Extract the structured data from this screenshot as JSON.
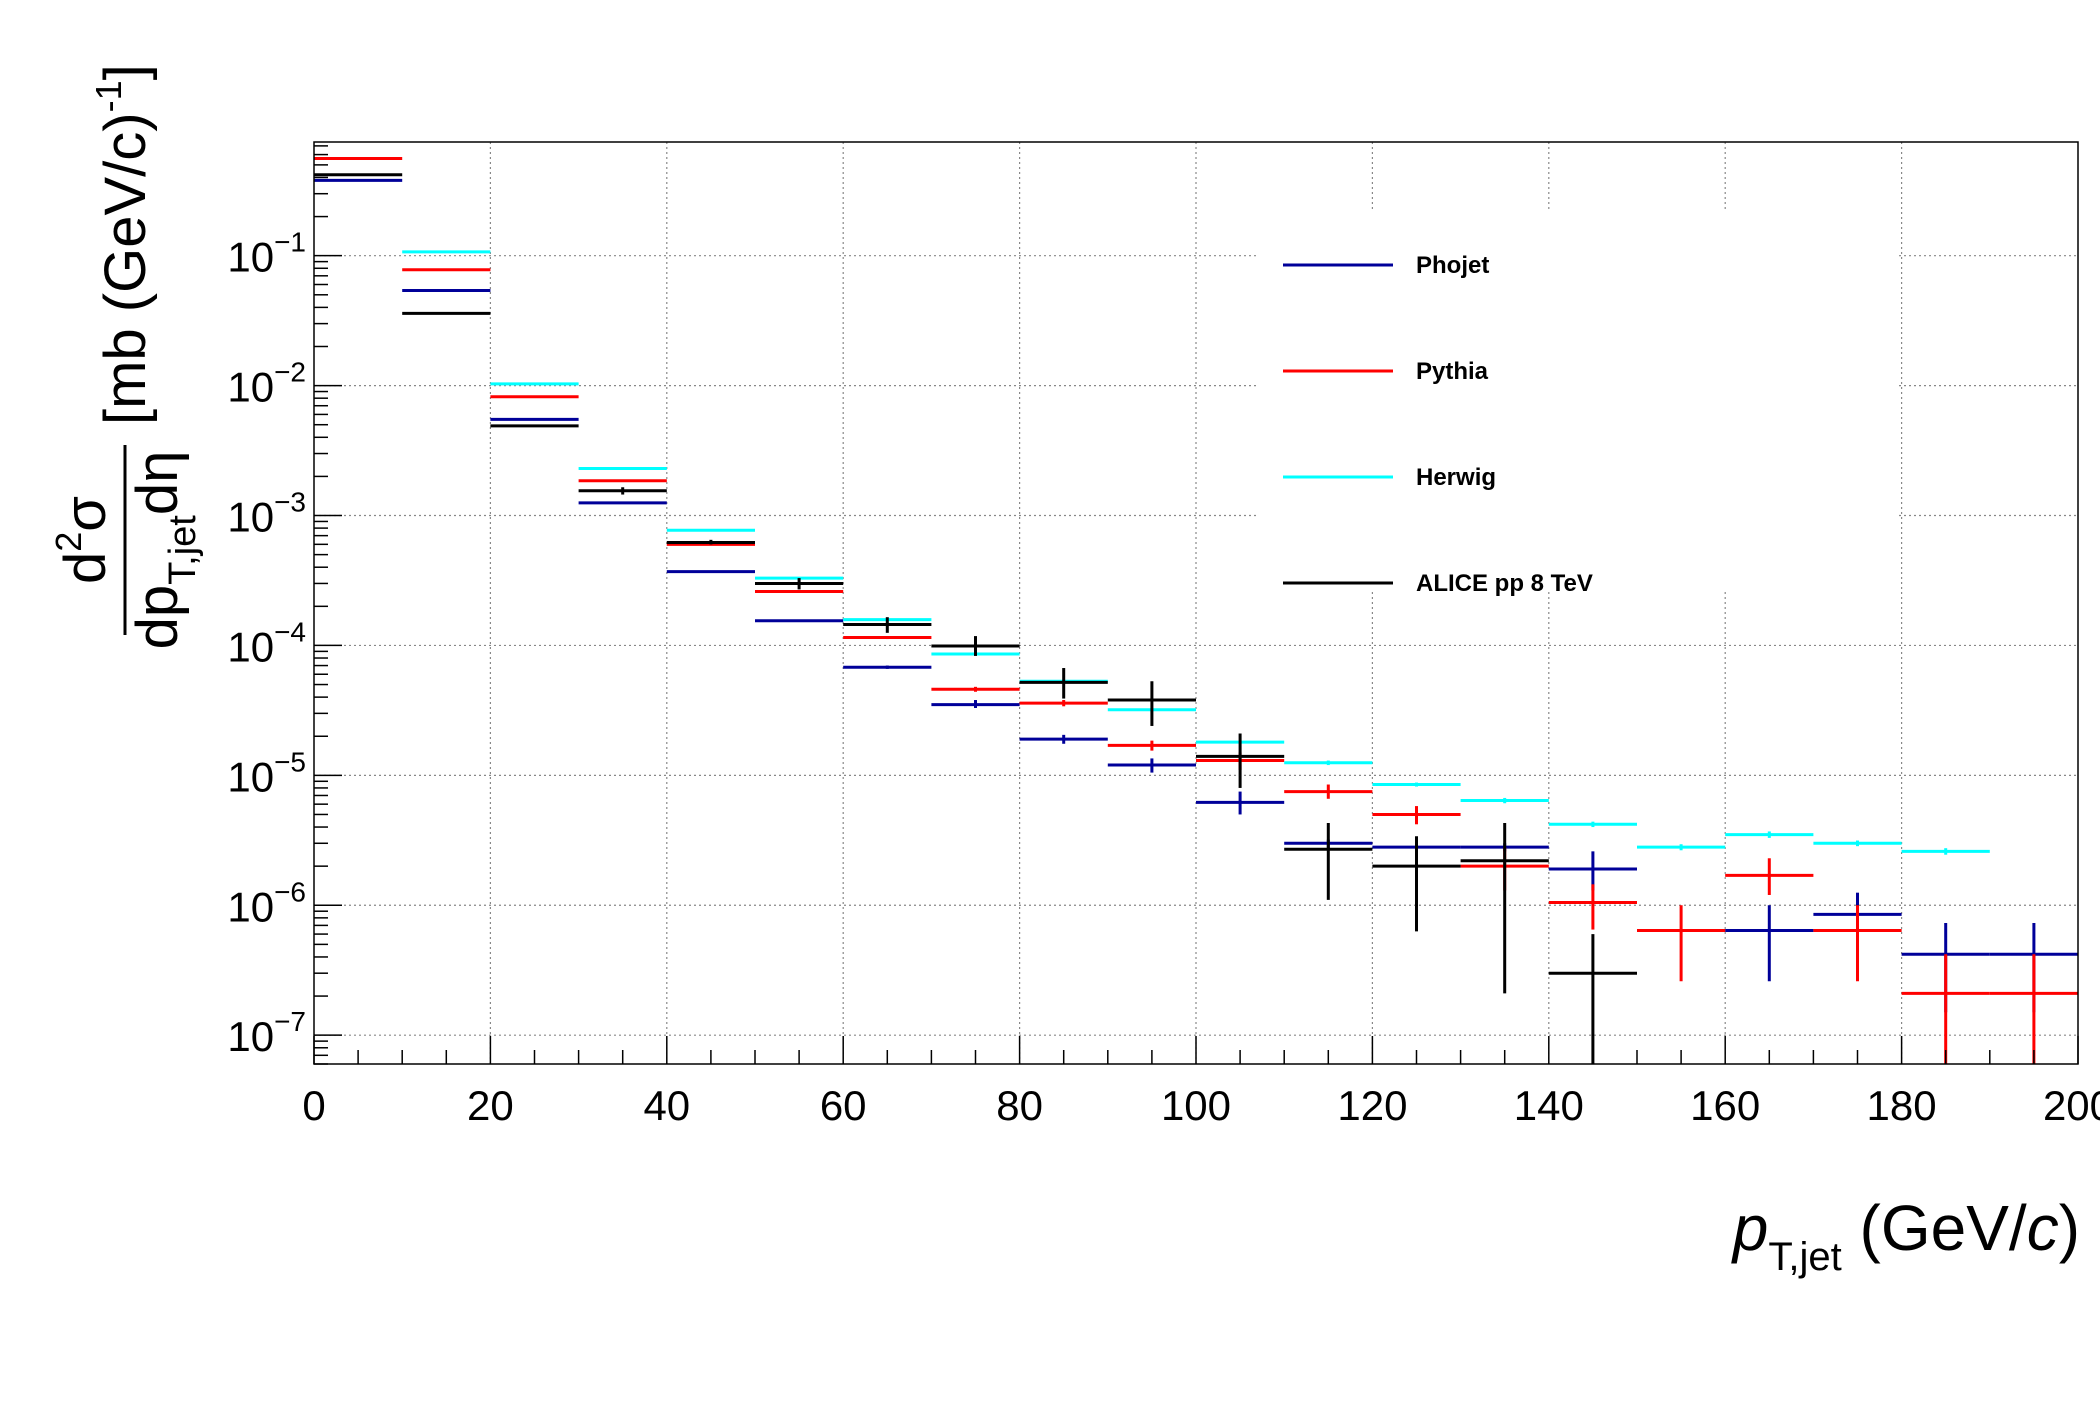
{
  "chart_data": {
    "type": "scatter",
    "title": "",
    "xlabel": {
      "main": "p",
      "sub": "T,jet",
      "unit_open": " (GeV/",
      "unit_c": "c",
      "unit_close": ")"
    },
    "ylabel": {
      "d2": "d",
      "sup2": "2",
      "sigma": "σ",
      "dp": "dp",
      "sub": "T,jet",
      "deta": "dη",
      "units": "[mb (GeV/c)",
      "exp": "-1",
      "close": "]"
    },
    "xlim": [
      0,
      200
    ],
    "ylim": [
      6e-08,
      0.75
    ],
    "yscale": "log",
    "grid": true,
    "x_ticks": [
      "0",
      "20",
      "40",
      "60",
      "80",
      "100",
      "120",
      "140",
      "160",
      "180",
      "200"
    ],
    "y_ticks": [
      {
        "base": "10",
        "exp": "−1"
      },
      {
        "base": "10",
        "exp": "−2"
      },
      {
        "base": "10",
        "exp": "−3"
      },
      {
        "base": "10",
        "exp": "−4"
      },
      {
        "base": "10",
        "exp": "−5"
      },
      {
        "base": "10",
        "exp": "−6"
      },
      {
        "base": "10",
        "exp": "−7"
      }
    ],
    "legend_position": "top-right",
    "series": [
      {
        "name": "Phojet",
        "color": "#000099",
        "points": [
          {
            "x0": 0,
            "x1": 10,
            "y": 0.38,
            "lo": 0.38,
            "hi": 0.38
          },
          {
            "x0": 10,
            "x1": 20,
            "y": 0.054,
            "lo": 0.054,
            "hi": 0.054
          },
          {
            "x0": 20,
            "x1": 30,
            "y": 0.0055,
            "lo": 0.0055,
            "hi": 0.0055
          },
          {
            "x0": 30,
            "x1": 40,
            "y": 0.00125,
            "lo": 0.00125,
            "hi": 0.00125
          },
          {
            "x0": 40,
            "x1": 50,
            "y": 0.00037,
            "lo": 0.00037,
            "hi": 0.00037
          },
          {
            "x0": 50,
            "x1": 60,
            "y": 0.000155,
            "lo": 0.000155,
            "hi": 0.000155
          },
          {
            "x0": 60,
            "x1": 70,
            "y": 6.8e-05,
            "lo": 6.6e-05,
            "hi": 7e-05
          },
          {
            "x0": 70,
            "x1": 80,
            "y": 3.5e-05,
            "lo": 3.3e-05,
            "hi": 3.8e-05
          },
          {
            "x0": 80,
            "x1": 90,
            "y": 1.9e-05,
            "lo": 1.75e-05,
            "hi": 2.05e-05
          },
          {
            "x0": 90,
            "x1": 100,
            "y": 1.2e-05,
            "lo": 1.05e-05,
            "hi": 1.35e-05
          },
          {
            "x0": 100,
            "x1": 110,
            "y": 6.2e-06,
            "lo": 5e-06,
            "hi": 7.5e-06
          },
          {
            "x0": 110,
            "x1": 120,
            "y": 3e-06,
            "lo": 2.7e-06,
            "hi": 3.2e-06
          },
          {
            "x0": 120,
            "x1": 130,
            "y": 2.8e-06,
            "lo": 2.6e-06,
            "hi": 3e-06
          },
          {
            "x0": 130,
            "x1": 140,
            "y": 2.8e-06,
            "lo": 2.6e-06,
            "hi": 3e-06
          },
          {
            "x0": 140,
            "x1": 150,
            "y": 1.9e-06,
            "lo": 1.3e-06,
            "hi": 2.6e-06
          },
          {
            "x0": 160,
            "x1": 170,
            "y": 6.4e-07,
            "lo": 2.6e-07,
            "hi": 1e-06
          },
          {
            "x0": 170,
            "x1": 180,
            "y": 8.5e-07,
            "lo": 5.5e-07,
            "hi": 1.25e-06
          },
          {
            "x0": 180,
            "x1": 190,
            "y": 4.2e-07,
            "lo": 1.5e-07,
            "hi": 7.3e-07
          },
          {
            "x0": 190,
            "x1": 200,
            "y": 4.2e-07,
            "lo": 1.5e-07,
            "hi": 7.3e-07
          }
        ]
      },
      {
        "name": "Pythia",
        "color": "#ff0000",
        "points": [
          {
            "x0": 0,
            "x1": 10,
            "y": 0.56,
            "lo": 0.56,
            "hi": 0.56
          },
          {
            "x0": 10,
            "x1": 20,
            "y": 0.078,
            "lo": 0.078,
            "hi": 0.078
          },
          {
            "x0": 20,
            "x1": 30,
            "y": 0.0082,
            "lo": 0.0082,
            "hi": 0.0082
          },
          {
            "x0": 30,
            "x1": 40,
            "y": 0.00185,
            "lo": 0.00185,
            "hi": 0.00185
          },
          {
            "x0": 40,
            "x1": 50,
            "y": 0.0006,
            "lo": 0.0006,
            "hi": 0.0006
          },
          {
            "x0": 50,
            "x1": 60,
            "y": 0.00026,
            "lo": 0.00026,
            "hi": 0.00026
          },
          {
            "x0": 60,
            "x1": 70,
            "y": 0.000115,
            "lo": 0.000112,
            "hi": 0.000118
          },
          {
            "x0": 70,
            "x1": 80,
            "y": 4.6e-05,
            "lo": 4.4e-05,
            "hi": 4.8e-05
          },
          {
            "x0": 80,
            "x1": 90,
            "y": 3.6e-05,
            "lo": 3.4e-05,
            "hi": 3.8e-05
          },
          {
            "x0": 90,
            "x1": 100,
            "y": 1.7e-05,
            "lo": 1.55e-05,
            "hi": 1.85e-05
          },
          {
            "x0": 100,
            "x1": 110,
            "y": 1.3e-05,
            "lo": 1.1e-05,
            "hi": 1.5e-05
          },
          {
            "x0": 110,
            "x1": 120,
            "y": 7.5e-06,
            "lo": 6.6e-06,
            "hi": 8.5e-06
          },
          {
            "x0": 120,
            "x1": 130,
            "y": 5e-06,
            "lo": 4.2e-06,
            "hi": 5.8e-06
          },
          {
            "x0": 130,
            "x1": 140,
            "y": 2e-06,
            "lo": 1.3e-06,
            "hi": 2.8e-06
          },
          {
            "x0": 140,
            "x1": 150,
            "y": 1.05e-06,
            "lo": 6.5e-07,
            "hi": 1.45e-06
          },
          {
            "x0": 150,
            "x1": 160,
            "y": 6.4e-07,
            "lo": 2.6e-07,
            "hi": 1e-06
          },
          {
            "x0": 160,
            "x1": 170,
            "y": 1.7e-06,
            "lo": 1.2e-06,
            "hi": 2.3e-06
          },
          {
            "x0": 170,
            "x1": 180,
            "y": 6.4e-07,
            "lo": 2.6e-07,
            "hi": 1e-06
          },
          {
            "x0": 180,
            "x1": 190,
            "y": 2.1e-07,
            "lo": 6e-08,
            "hi": 4.2e-07
          },
          {
            "x0": 190,
            "x1": 200,
            "y": 2.1e-07,
            "lo": 6e-08,
            "hi": 4.2e-07
          }
        ]
      },
      {
        "name": "Herwig",
        "color": "#00ffff",
        "points": [
          {
            "x0": 10,
            "x1": 20,
            "y": 0.107,
            "lo": 0.107,
            "hi": 0.107
          },
          {
            "x0": 20,
            "x1": 30,
            "y": 0.0103,
            "lo": 0.0103,
            "hi": 0.0103
          },
          {
            "x0": 30,
            "x1": 40,
            "y": 0.0023,
            "lo": 0.0023,
            "hi": 0.0023
          },
          {
            "x0": 40,
            "x1": 50,
            "y": 0.00077,
            "lo": 0.00077,
            "hi": 0.00077
          },
          {
            "x0": 50,
            "x1": 60,
            "y": 0.00033,
            "lo": 0.00033,
            "hi": 0.00033
          },
          {
            "x0": 60,
            "x1": 70,
            "y": 0.000158,
            "lo": 0.000158,
            "hi": 0.000158
          },
          {
            "x0": 70,
            "x1": 80,
            "y": 8.6e-05,
            "lo": 8.4e-05,
            "hi": 8.8e-05
          },
          {
            "x0": 80,
            "x1": 90,
            "y": 5.3e-05,
            "lo": 5.2e-05,
            "hi": 5.4e-05
          },
          {
            "x0": 90,
            "x1": 100,
            "y": 3.2e-05,
            "lo": 3.1e-05,
            "hi": 3.3e-05
          },
          {
            "x0": 100,
            "x1": 110,
            "y": 1.8e-05,
            "lo": 1.75e-05,
            "hi": 1.85e-05
          },
          {
            "x0": 110,
            "x1": 120,
            "y": 1.25e-05,
            "lo": 1.2e-05,
            "hi": 1.3e-05
          },
          {
            "x0": 120,
            "x1": 130,
            "y": 8.5e-06,
            "lo": 8.2e-06,
            "hi": 8.8e-06
          },
          {
            "x0": 130,
            "x1": 140,
            "y": 6.4e-06,
            "lo": 6.1e-06,
            "hi": 6.7e-06
          },
          {
            "x0": 140,
            "x1": 150,
            "y": 4.2e-06,
            "lo": 4e-06,
            "hi": 4.4e-06
          },
          {
            "x0": 150,
            "x1": 160,
            "y": 2.8e-06,
            "lo": 2.65e-06,
            "hi": 2.95e-06
          },
          {
            "x0": 160,
            "x1": 170,
            "y": 3.5e-06,
            "lo": 3.3e-06,
            "hi": 3.7e-06
          },
          {
            "x0": 170,
            "x1": 180,
            "y": 3e-06,
            "lo": 2.85e-06,
            "hi": 3.15e-06
          },
          {
            "x0": 180,
            "x1": 190,
            "y": 2.6e-06,
            "lo": 2.45e-06,
            "hi": 2.75e-06
          }
        ]
      },
      {
        "name": "ALICE pp 8 TeV",
        "color": "#000000",
        "points": [
          {
            "x0": 0,
            "x1": 10,
            "y": 0.42,
            "lo": 0.42,
            "hi": 0.42
          },
          {
            "x0": 10,
            "x1": 20,
            "y": 0.036,
            "lo": 0.036,
            "hi": 0.036
          },
          {
            "x0": 20,
            "x1": 30,
            "y": 0.0049,
            "lo": 0.0049,
            "hi": 0.0049
          },
          {
            "x0": 30,
            "x1": 40,
            "y": 0.00155,
            "lo": 0.00145,
            "hi": 0.00165
          },
          {
            "x0": 40,
            "x1": 50,
            "y": 0.00062,
            "lo": 0.0006,
            "hi": 0.00065
          },
          {
            "x0": 50,
            "x1": 60,
            "y": 0.0003,
            "lo": 0.00027,
            "hi": 0.00033
          },
          {
            "x0": 60,
            "x1": 70,
            "y": 0.000145,
            "lo": 0.000125,
            "hi": 0.000165
          },
          {
            "x0": 70,
            "x1": 80,
            "y": 9.9e-05,
            "lo": 8.3e-05,
            "hi": 0.000118
          },
          {
            "x0": 80,
            "x1": 90,
            "y": 5.2e-05,
            "lo": 3.9e-05,
            "hi": 6.7e-05
          },
          {
            "x0": 90,
            "x1": 100,
            "y": 3.8e-05,
            "lo": 2.4e-05,
            "hi": 5.3e-05
          },
          {
            "x0": 100,
            "x1": 110,
            "y": 1.4e-05,
            "lo": 8e-06,
            "hi": 2.1e-05
          },
          {
            "x0": 110,
            "x1": 120,
            "y": 2.7e-06,
            "lo": 1.1e-06,
            "hi": 4.3e-06
          },
          {
            "x0": 120,
            "x1": 130,
            "y": 2e-06,
            "lo": 6.3e-07,
            "hi": 3.4e-06
          },
          {
            "x0": 130,
            "x1": 140,
            "y": 2.2e-06,
            "lo": 2.1e-07,
            "hi": 4.3e-06
          },
          {
            "x0": 140,
            "x1": 150,
            "y": 3e-07,
            "lo": 6e-08,
            "hi": 6e-07
          }
        ]
      }
    ]
  }
}
